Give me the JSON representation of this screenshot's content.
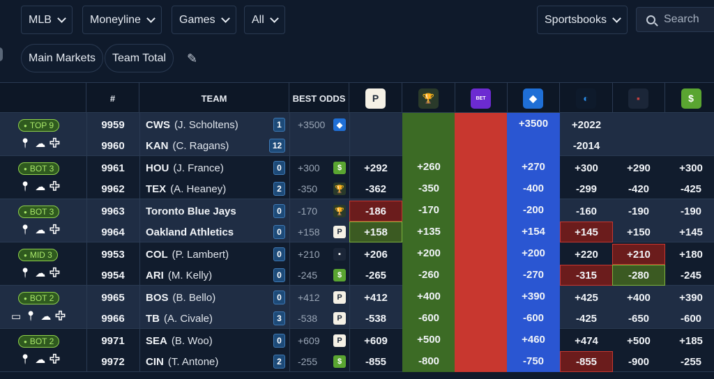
{
  "filters": {
    "league": "MLB",
    "market": "Moneyline",
    "period": "Games",
    "scope": "All",
    "sportsbooks": "Sportsbooks",
    "search_placeholder": "Search"
  },
  "tabs": {
    "main_markets": "Main Markets",
    "team_total": "Team Total"
  },
  "header": {
    "num": "#",
    "team": "TEAM",
    "best_odds": "BEST ODDS"
  },
  "books": [
    {
      "icon": "P",
      "bg": "#f5f1e6",
      "fg": "#1e2a3a",
      "name": "book-p-icon"
    },
    {
      "icon": "🏆",
      "bg": "#2a3a2a",
      "fg": "#e6d08a",
      "name": "trophy-book-icon"
    },
    {
      "icon": "BET",
      "bg": "#6c2bd1",
      "fg": "#ffffff",
      "name": "betfred-icon"
    },
    {
      "icon": "◆",
      "bg": "#1f6fd6",
      "fg": "#ffffff",
      "name": "fanduel-icon"
    },
    {
      "icon": "◐",
      "bg": "#0e1a2b",
      "fg": "#2a8be6",
      "name": "book-swirl-icon"
    },
    {
      "icon": "▪",
      "bg": "#1b2638",
      "fg": "#c24040",
      "name": "book-small-icon"
    },
    {
      "icon": "$",
      "bg": "#5aa531",
      "fg": "#ffffff",
      "name": "draftkings-icon"
    }
  ],
  "games": [
    {
      "tag": "TOP 9",
      "extra_icon": false,
      "rows": [
        {
          "num": "9959",
          "team": "CWS",
          "pitcher": "(J. Scholtens)",
          "badge": "1",
          "best": "+3500",
          "best_icon": "◆",
          "best_bg": "#1f6fd6",
          "odds": [
            "",
            "",
            "",
            "+3500",
            "+2022",
            "",
            ""
          ]
        },
        {
          "num": "9960",
          "team": "KAN",
          "pitcher": "(C. Ragans)",
          "badge": "12",
          "best": "",
          "best_icon": "",
          "best_bg": "",
          "odds": [
            "",
            "",
            "",
            "",
            "-2014",
            "",
            ""
          ]
        }
      ]
    },
    {
      "tag": "BOT 3",
      "extra_icon": false,
      "rows": [
        {
          "num": "9961",
          "team": "HOU",
          "pitcher": "(J. France)",
          "badge": "0",
          "best": "+300",
          "best_icon": "$",
          "best_bg": "#5aa531",
          "odds": [
            "+292",
            "+260",
            "",
            "+270",
            "+300",
            "+290",
            "+300"
          ]
        },
        {
          "num": "9962",
          "team": "TEX",
          "pitcher": "(A. Heaney)",
          "badge": "2",
          "best": "-350",
          "best_icon": "🏆",
          "best_bg": "#2a3a2a",
          "odds": [
            "-362",
            "-350",
            "",
            "-400",
            "-299",
            "-420",
            "-425"
          ]
        }
      ]
    },
    {
      "tag": "BOT 3",
      "extra_icon": false,
      "rows": [
        {
          "num": "9963",
          "team": "Toronto Blue Jays",
          "pitcher": "",
          "badge": "0",
          "best": "-170",
          "best_icon": "🏆",
          "best_bg": "#2a3a2a",
          "odds": [
            "-186",
            "-170",
            "",
            "-200",
            "-160",
            "-190",
            "-190"
          ]
        },
        {
          "num": "9964",
          "team": "Oakland Athletics",
          "pitcher": "",
          "badge": "0",
          "best": "+158",
          "best_icon": "P",
          "best_bg": "#f5f1e6",
          "odds": [
            "+158",
            "+135",
            "",
            "+154",
            "+145",
            "+150",
            "+145"
          ]
        }
      ]
    },
    {
      "tag": "MID 3",
      "extra_icon": false,
      "rows": [
        {
          "num": "9953",
          "team": "COL",
          "pitcher": "(P. Lambert)",
          "badge": "0",
          "best": "+210",
          "best_icon": "▪",
          "best_bg": "#1b2638",
          "odds": [
            "+206",
            "+200",
            "",
            "+200",
            "+220",
            "+210",
            "+180"
          ]
        },
        {
          "num": "9954",
          "team": "ARI",
          "pitcher": "(M. Kelly)",
          "badge": "0",
          "best": "-245",
          "best_icon": "$",
          "best_bg": "#5aa531",
          "odds": [
            "-265",
            "-260",
            "",
            "-270",
            "-315",
            "-280",
            "-245"
          ]
        }
      ]
    },
    {
      "tag": "BOT 2",
      "extra_icon": true,
      "rows": [
        {
          "num": "9965",
          "team": "BOS",
          "pitcher": "(B. Bello)",
          "badge": "0",
          "best": "+412",
          "best_icon": "P",
          "best_bg": "#f5f1e6",
          "odds": [
            "+412",
            "+400",
            "",
            "+390",
            "+425",
            "+400",
            "+390"
          ]
        },
        {
          "num": "9966",
          "team": "TB",
          "pitcher": "(A. Civale)",
          "badge": "3",
          "best": "-538",
          "best_icon": "P",
          "best_bg": "#f5f1e6",
          "odds": [
            "-538",
            "-600",
            "",
            "-600",
            "-425",
            "-650",
            "-600"
          ]
        }
      ]
    },
    {
      "tag": "BOT 2",
      "extra_icon": false,
      "rows": [
        {
          "num": "9971",
          "team": "SEA",
          "pitcher": "(B. Woo)",
          "badge": "0",
          "best": "+609",
          "best_icon": "P",
          "best_bg": "#f5f1e6",
          "odds": [
            "+609",
            "+500",
            "",
            "+460",
            "+474",
            "+500",
            "+185"
          ]
        },
        {
          "num": "9972",
          "team": "CIN",
          "pitcher": "(T. Antone)",
          "badge": "2",
          "best": "-255",
          "best_icon": "$",
          "best_bg": "#5aa531",
          "odds": [
            "-855",
            "-800",
            "",
            "-750",
            "-855",
            "-900",
            "-255"
          ]
        }
      ]
    }
  ],
  "highlights": [
    {
      "g": 2,
      "r": 0,
      "c": 0,
      "type": "red"
    },
    {
      "g": 2,
      "r": 1,
      "c": 0,
      "type": "green"
    },
    {
      "g": 2,
      "r": 1,
      "c": 4,
      "type": "red"
    },
    {
      "g": 3,
      "r": 0,
      "c": 5,
      "type": "red"
    },
    {
      "g": 3,
      "r": 1,
      "c": 4,
      "type": "red"
    },
    {
      "g": 3,
      "r": 1,
      "c": 5,
      "type": "green"
    },
    {
      "g": 5,
      "r": 1,
      "c": 4,
      "type": "red"
    }
  ],
  "colors": {
    "col_green": "#3c6b25",
    "col_red": "#c8372f",
    "col_blue": "#2a56d2",
    "hl_red": "#6b1c1c",
    "hl_green": "#3b5a22",
    "row_a": "#1f2d44",
    "row_b": "#111c2d"
  }
}
